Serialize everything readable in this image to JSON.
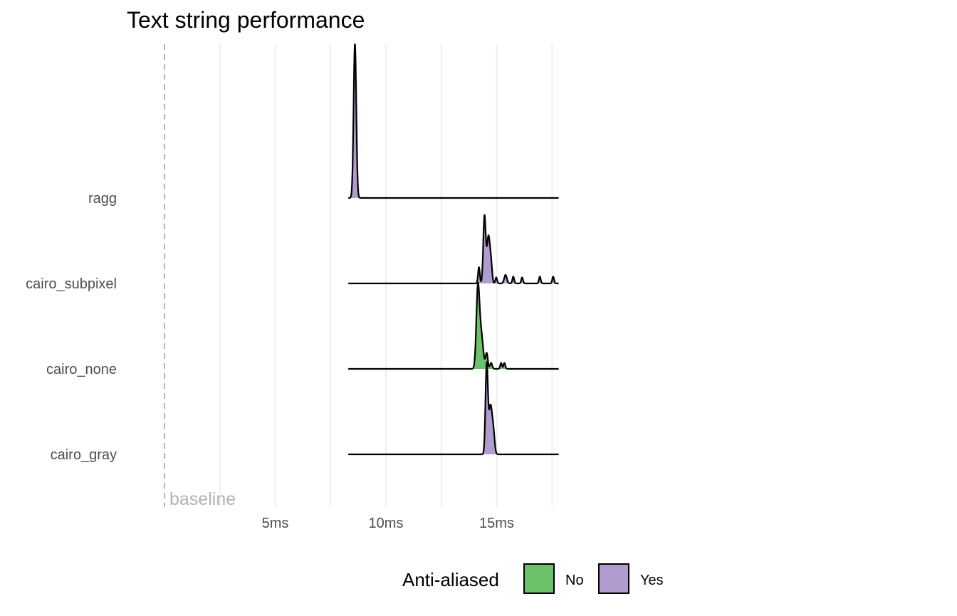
{
  "chart_data": {
    "type": "ridgeline",
    "title": "Text string performance",
    "xlabel": "",
    "ylabel": "",
    "x_unit": "ms",
    "xlim": [
      -0.1,
      17.7
    ],
    "x_ticks": [
      {
        "value": 5,
        "label": "5ms"
      },
      {
        "value": 10,
        "label": "10ms"
      },
      {
        "value": 15,
        "label": "15ms"
      }
    ],
    "x_minor_gridlines": [
      2.5,
      7.5,
      12.5,
      17.5
    ],
    "grid": true,
    "baseline": {
      "value": 0,
      "label": "baseline",
      "style": "dashed",
      "color": "#b3b3b3"
    },
    "categories": [
      "ragg",
      "cairo_subpixel",
      "cairo_none",
      "cairo_gray"
    ],
    "legend": {
      "title": "Anti-aliased",
      "position": "bottom",
      "entries": [
        {
          "label": "No",
          "color": "#6cc26a"
        },
        {
          "label": "Yes",
          "color": "#b19cd0"
        }
      ]
    },
    "series": [
      {
        "category": "ragg",
        "anti_aliased": "Yes",
        "x_range": [
          8.3,
          17.8
        ],
        "fill_range": [
          8.3,
          8.85
        ],
        "peaks": [
          {
            "x": 8.6,
            "height": 1.8,
            "width": 0.06
          }
        ]
      },
      {
        "category": "cairo_subpixel",
        "anti_aliased": "Yes",
        "x_range": [
          8.3,
          17.8
        ],
        "fill_range": [
          14.1,
          17.7
        ],
        "peaks": [
          {
            "x": 14.45,
            "height": 0.78,
            "width": 0.055
          },
          {
            "x": 14.63,
            "height": 0.55,
            "width": 0.07
          },
          {
            "x": 14.2,
            "height": 0.19,
            "width": 0.04
          },
          {
            "x": 14.75,
            "height": 0.18,
            "width": 0.05
          },
          {
            "x": 14.98,
            "height": 0.07,
            "width": 0.04
          },
          {
            "x": 15.4,
            "height": 0.1,
            "width": 0.06
          },
          {
            "x": 15.75,
            "height": 0.08,
            "width": 0.04
          },
          {
            "x": 16.15,
            "height": 0.07,
            "width": 0.04
          },
          {
            "x": 16.95,
            "height": 0.08,
            "width": 0.04
          },
          {
            "x": 17.55,
            "height": 0.08,
            "width": 0.04
          }
        ]
      },
      {
        "category": "cairo_none",
        "anti_aliased": "No",
        "x_range": [
          8.3,
          17.8
        ],
        "fill_range": [
          13.8,
          15.5
        ],
        "peaks": [
          {
            "x": 14.15,
            "height": 0.9,
            "width": 0.07
          },
          {
            "x": 14.3,
            "height": 0.4,
            "width": 0.09
          },
          {
            "x": 14.55,
            "height": 0.18,
            "width": 0.05
          },
          {
            "x": 14.75,
            "height": 0.07,
            "width": 0.05
          },
          {
            "x": 15.2,
            "height": 0.07,
            "width": 0.04
          },
          {
            "x": 15.35,
            "height": 0.07,
            "width": 0.04
          }
        ]
      },
      {
        "category": "cairo_gray",
        "anti_aliased": "Yes",
        "x_range": [
          8.3,
          17.8
        ],
        "fill_range": [
          14.2,
          15.0
        ],
        "peaks": [
          {
            "x": 14.55,
            "height": 1.05,
            "width": 0.055
          },
          {
            "x": 14.72,
            "height": 0.55,
            "width": 0.07
          },
          {
            "x": 14.85,
            "height": 0.25,
            "width": 0.06
          }
        ]
      }
    ]
  }
}
